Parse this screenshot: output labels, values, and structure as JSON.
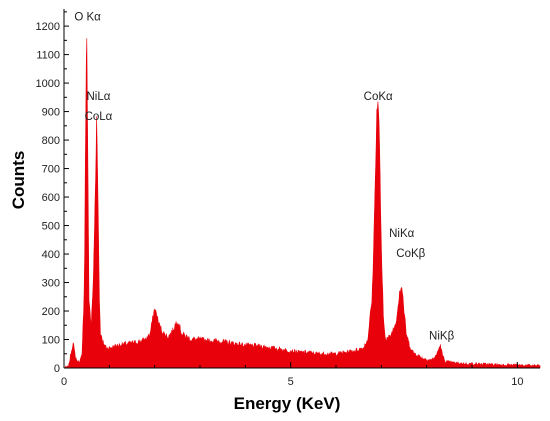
{
  "chart_data": {
    "type": "area",
    "title": "",
    "xlabel": "Energy (KeV)",
    "ylabel": "Counts",
    "xlim": [
      0,
      10.5
    ],
    "ylim": [
      0,
      1260
    ],
    "x_major_ticks": [
      0,
      5,
      10
    ],
    "x_tick_labels": [
      "0",
      "5",
      "10"
    ],
    "y_major_ticks": [
      0,
      100,
      200,
      300,
      400,
      500,
      600,
      700,
      800,
      900,
      1000,
      1100,
      1200
    ],
    "y_tick_labels": [
      "0",
      "100",
      "200",
      "300",
      "400",
      "500",
      "600",
      "700",
      "800",
      "900",
      "1000",
      "1100",
      "1200"
    ],
    "grid": false,
    "fill_color": "#e8000b",
    "series": [
      {
        "name": "",
        "x": [
          0.0,
          0.1,
          0.2,
          0.25,
          0.3,
          0.35,
          0.4,
          0.45,
          0.48,
          0.5,
          0.52,
          0.55,
          0.6,
          0.65,
          0.7,
          0.72,
          0.75,
          0.78,
          0.8,
          0.85,
          0.9,
          0.95,
          1.0,
          1.1,
          1.2,
          1.4,
          1.6,
          1.8,
          1.9,
          2.0,
          2.1,
          2.2,
          2.3,
          2.4,
          2.5,
          2.6,
          2.7,
          2.8,
          3.0,
          3.2,
          3.4,
          3.6,
          3.8,
          4.0,
          4.2,
          4.4,
          4.6,
          4.8,
          5.0,
          5.2,
          5.4,
          5.6,
          5.8,
          6.0,
          6.2,
          6.4,
          6.6,
          6.7,
          6.8,
          6.85,
          6.9,
          6.93,
          6.96,
          7.0,
          7.05,
          7.1,
          7.2,
          7.3,
          7.35,
          7.4,
          7.45,
          7.48,
          7.5,
          7.55,
          7.6,
          7.65,
          7.7,
          7.8,
          7.9,
          8.0,
          8.1,
          8.2,
          8.25,
          8.3,
          8.35,
          8.4,
          8.5,
          8.6,
          8.8,
          9.0,
          9.5,
          10.0,
          10.5
        ],
        "values": [
          0,
          5,
          90,
          40,
          20,
          25,
          45,
          300,
          900,
          1220,
          850,
          250,
          140,
          320,
          700,
          880,
          600,
          250,
          130,
          90,
          80,
          70,
          70,
          75,
          80,
          85,
          90,
          100,
          120,
          210,
          150,
          120,
          110,
          130,
          170,
          120,
          110,
          100,
          100,
          95,
          95,
          90,
          85,
          80,
          78,
          75,
          70,
          65,
          60,
          55,
          55,
          50,
          50,
          50,
          55,
          60,
          70,
          100,
          250,
          550,
          900,
          930,
          800,
          400,
          160,
          100,
          110,
          150,
          190,
          270,
          290,
          240,
          200,
          120,
          90,
          70,
          55,
          45,
          35,
          30,
          28,
          40,
          60,
          80,
          45,
          25,
          20,
          18,
          15,
          15,
          12,
          10,
          8
        ]
      }
    ],
    "annotations": [
      {
        "text": "O Kα",
        "x": 0.52,
        "y": 1220
      },
      {
        "text": "NiLα",
        "x": 0.76,
        "y": 940
      },
      {
        "text": "CoLα",
        "x": 0.76,
        "y": 870
      },
      {
        "text": "CoKα",
        "x": 6.93,
        "y": 940
      },
      {
        "text": "NiKα",
        "x": 7.45,
        "y": 460
      },
      {
        "text": "CoKβ",
        "x": 7.65,
        "y": 390
      },
      {
        "text": "NiKβ",
        "x": 8.33,
        "y": 100
      }
    ]
  }
}
